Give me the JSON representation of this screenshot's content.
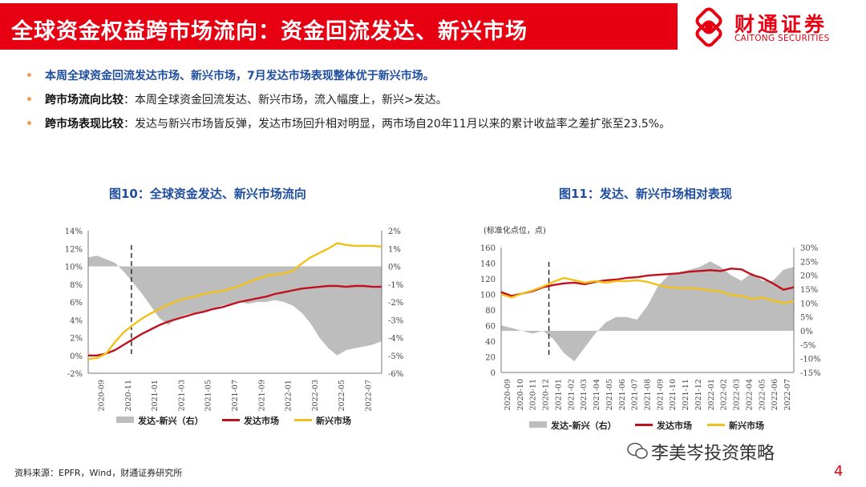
{
  "header": {
    "title": "全球资金权益跨市场流向：资金回流发达、新兴市场",
    "logo_cn": "财通证券",
    "logo_en": "CAITONG SECURITIES",
    "brand_color": "#e60012"
  },
  "bullets": [
    {
      "key": "",
      "text": "本周全球资金回流发达市场、新兴市场，7月发达市场表现整体优于新兴市场。"
    },
    {
      "key": "跨市场流向比较",
      "text": "：本周全球资金回流发达、新兴市场，流入幅度上，新兴>发达。"
    },
    {
      "key": "跨市场表现比较",
      "text": "：发达与新兴市场皆反弹，发达市场回升相对明显，两市场自20年11月以来的累计收益率之差扩张至23.5%。"
    }
  ],
  "chart_titles": {
    "chart1": "图10：全球资金发达、新兴市场流向",
    "chart2": "图11：发达、新兴市场相对表现"
  },
  "chart_data": [
    {
      "type": "line",
      "title": "图10：全球资金发达、新兴市场流向",
      "left_axis": {
        "ticks": [
          "-2%",
          "0%",
          "2%",
          "4%",
          "6%",
          "8%",
          "10%",
          "12%",
          "14%"
        ],
        "ylim": [
          -2,
          14
        ]
      },
      "right_axis": {
        "ticks": [
          "-6%",
          "-5%",
          "-4%",
          "-3%",
          "-2%",
          "-1%",
          "0%",
          "1%",
          "2%"
        ],
        "ylim": [
          -6,
          2
        ]
      },
      "x_ticks": [
        "2020-09",
        "2020-11",
        "2021-01",
        "2021-03",
        "2021-05",
        "2021-07",
        "2021-09",
        "2022-01",
        "2022-03",
        "2022-05",
        "2022-07"
      ],
      "vline_at": "2020-11",
      "series": [
        {
          "name": "发达-新兴（右）",
          "kind": "area",
          "axis": "right",
          "color": "#bdbdbd",
          "values": [
            0.5,
            0.6,
            0.4,
            0.2,
            -0.3,
            -0.9,
            -1.5,
            -2.2,
            -2.9,
            -3.3,
            -2.9,
            -2.7,
            -2.6,
            -2.5,
            -2.4,
            -2.2,
            -2.1,
            -2.0,
            -2.1,
            -2.0,
            -2.0,
            -1.9,
            -2.0,
            -2.2,
            -2.6,
            -3.2,
            -4.0,
            -4.6,
            -5.0,
            -4.7,
            -4.6,
            -4.5,
            -4.4,
            -4.2
          ]
        },
        {
          "name": "发达市场",
          "kind": "line",
          "axis": "left",
          "color": "#c0111f",
          "values": [
            0.0,
            0.0,
            0.2,
            0.6,
            1.2,
            1.8,
            2.4,
            2.9,
            3.4,
            3.8,
            4.1,
            4.4,
            4.7,
            4.9,
            5.2,
            5.4,
            5.7,
            6.0,
            6.2,
            6.4,
            6.6,
            6.9,
            7.1,
            7.3,
            7.5,
            7.6,
            7.7,
            7.8,
            7.8,
            7.7,
            7.8,
            7.8,
            7.7,
            7.7
          ]
        },
        {
          "name": "新兴市场",
          "kind": "line",
          "axis": "left",
          "color": "#f2c118",
          "values": [
            -0.4,
            -0.3,
            0.2,
            1.5,
            2.6,
            3.4,
            4.1,
            4.7,
            5.2,
            5.7,
            6.1,
            6.4,
            6.6,
            6.9,
            7.1,
            7.2,
            7.5,
            7.8,
            8.2,
            8.6,
            8.9,
            9.1,
            9.2,
            9.5,
            10.3,
            11.0,
            11.5,
            12.0,
            12.6,
            12.4,
            12.3,
            12.3,
            12.3,
            12.2
          ]
        }
      ],
      "legend": [
        "发达-新兴（右）",
        "发达市场",
        "新兴市场"
      ]
    },
    {
      "type": "line",
      "title": "图11：发达、新兴市场相对表现",
      "unit_label": "(标准化点位，点)",
      "left_axis": {
        "ticks": [
          "0",
          "20",
          "40",
          "60",
          "80",
          "100",
          "120",
          "140",
          "160"
        ],
        "ylim": [
          0,
          160
        ]
      },
      "right_axis": {
        "ticks": [
          "-15%",
          "-10%",
          "-5%",
          "0%",
          "5%",
          "10%",
          "15%",
          "20%",
          "25%",
          "30%"
        ],
        "ylim": [
          -15,
          30
        ]
      },
      "x_ticks": [
        "2020-09",
        "2020-10",
        "2020-11",
        "2020-12",
        "2021-01",
        "2021-02",
        "2021-03",
        "2021-04",
        "2021-05",
        "2021-06",
        "2021-07",
        "2021-08",
        "2021-09",
        "2021-10",
        "2021-11",
        "2021-12",
        "2022-01",
        "2022-02",
        "2022-03",
        "2022-04",
        "2022-05",
        "2022-06",
        "2022-07"
      ],
      "vline_at": "2020-12",
      "series": [
        {
          "name": "发达-新兴（右）",
          "kind": "area",
          "axis": "right",
          "color": "#bdbdbd",
          "values": [
            2,
            1,
            0,
            -1,
            0,
            -3,
            -8,
            -11,
            -6,
            -1,
            3,
            5,
            5,
            4,
            9,
            16,
            20,
            21,
            22,
            23,
            25,
            23,
            20,
            18,
            21,
            18,
            18,
            22,
            23
          ]
        },
        {
          "name": "发达市场",
          "kind": "line",
          "axis": "left",
          "color": "#c0111f",
          "values": [
            103,
            98,
            101,
            104,
            109,
            112,
            114,
            115,
            113,
            116,
            118,
            119,
            121,
            122,
            124,
            125,
            126,
            127,
            129,
            130,
            131,
            130,
            133,
            132,
            125,
            121,
            114,
            106,
            109
          ]
        },
        {
          "name": "新兴市场",
          "kind": "line",
          "axis": "left",
          "color": "#f2c118",
          "values": [
            100,
            96,
            101,
            105,
            110,
            116,
            121,
            118,
            115,
            117,
            115,
            117,
            117,
            118,
            116,
            112,
            109,
            108,
            108,
            107,
            105,
            104,
            99,
            98,
            94,
            96,
            92,
            89,
            91
          ]
        }
      ],
      "legend": [
        "发达-新兴（右）",
        "发达市场",
        "新兴市场"
      ]
    }
  ],
  "source": "资料来源：EPFR，Wind，财通证券研究所",
  "watermark": "李美岑投资策略",
  "page_number": "4"
}
